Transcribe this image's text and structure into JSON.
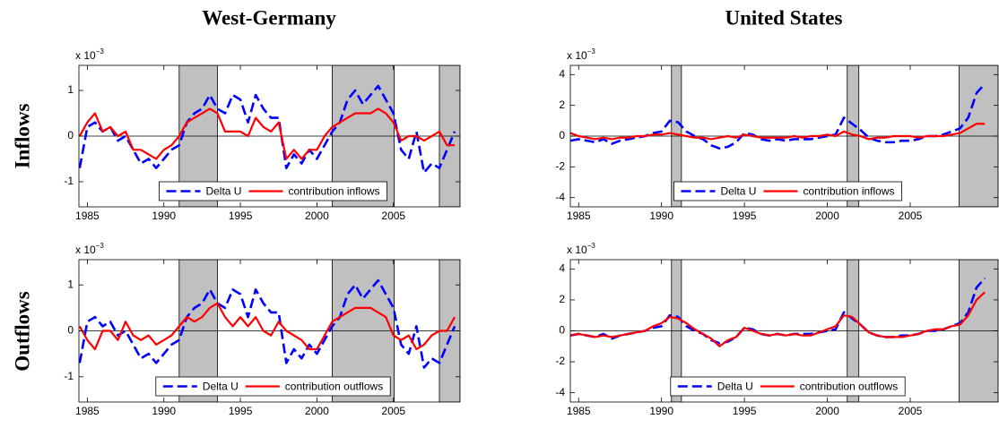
{
  "column_titles": [
    "West-Germany",
    "United States"
  ],
  "row_titles": [
    "Inflows",
    "Outflows"
  ],
  "chart_data": [
    {
      "type": "line",
      "y_multiplier": "x 10",
      "y_exponent": "−3",
      "xlim": [
        1984.45,
        2009.35
      ],
      "xticks": [
        1985,
        1990,
        1995,
        2000,
        2005
      ],
      "ylim": [
        -1.55,
        1.55
      ],
      "yticks": [
        -1,
        0,
        1
      ],
      "shaded": [
        [
          1991,
          1993.5
        ],
        [
          2001,
          2005.05
        ],
        [
          2008,
          2009.35
        ]
      ],
      "shade_color": "#c0c0c0",
      "legend": "lower center",
      "x": [
        1984.5,
        1985,
        1985.5,
        1986,
        1986.5,
        1987,
        1987.5,
        1988,
        1988.5,
        1989,
        1989.5,
        1990,
        1990.5,
        1991,
        1991.5,
        1992,
        1992.5,
        1993,
        1993.5,
        1994,
        1994.5,
        1995,
        1995.5,
        1996,
        1996.5,
        1997,
        1997.5,
        1998,
        1998.5,
        1999,
        1999.5,
        2000,
        2000.5,
        2001,
        2001.5,
        2002,
        2002.5,
        2003,
        2003.5,
        2004,
        2004.5,
        2005,
        2005.5,
        2006,
        2006.5,
        2007,
        2007.5,
        2008,
        2008.5,
        2009
      ],
      "series": [
        {
          "name": "Delta U",
          "color": "#0000ff",
          "style": "dashed",
          "values": [
            -0.7,
            0.2,
            0.3,
            0.1,
            0.2,
            -0.1,
            0.0,
            -0.3,
            -0.6,
            -0.5,
            -0.7,
            -0.5,
            -0.3,
            -0.2,
            0.3,
            0.5,
            0.6,
            0.9,
            0.6,
            0.5,
            0.9,
            0.8,
            0.3,
            0.9,
            0.6,
            0.4,
            0.4,
            -0.7,
            -0.4,
            -0.6,
            -0.3,
            -0.5,
            -0.2,
            0.1,
            0.3,
            0.8,
            1.0,
            0.7,
            0.9,
            1.1,
            0.8,
            0.5,
            -0.3,
            -0.5,
            0.1,
            -0.8,
            -0.6,
            -0.7,
            -0.3,
            0.1
          ]
        },
        {
          "name": "contribution inflows",
          "color": "#ff0000",
          "style": "solid",
          "values": [
            0.0,
            0.3,
            0.5,
            0.1,
            0.2,
            0.0,
            0.1,
            -0.3,
            -0.3,
            -0.4,
            -0.5,
            -0.3,
            -0.2,
            0.0,
            0.3,
            0.4,
            0.5,
            0.6,
            0.5,
            0.1,
            0.1,
            0.1,
            0.0,
            0.4,
            0.2,
            0.1,
            0.3,
            -0.5,
            -0.3,
            -0.5,
            -0.3,
            -0.3,
            0.0,
            0.2,
            0.3,
            0.4,
            0.5,
            0.5,
            0.5,
            0.6,
            0.5,
            0.3,
            -0.1,
            0.0,
            0.0,
            -0.1,
            0.0,
            0.1,
            -0.2,
            -0.2
          ]
        }
      ]
    },
    {
      "type": "line",
      "y_multiplier": "x 10",
      "y_exponent": "−3",
      "xlim": [
        1984.5,
        2010.3
      ],
      "xticks": [
        1985,
        1990,
        1995,
        2000,
        2005
      ],
      "ylim": [
        -4.6,
        4.6
      ],
      "yticks": [
        -4,
        -2,
        0,
        2,
        4
      ],
      "shaded": [
        [
          1990.6,
          1991.2
        ],
        [
          2001.2,
          2001.9
        ],
        [
          2007.95,
          2010.3
        ]
      ],
      "shade_color": "#c0c0c0",
      "legend": "lower center",
      "x": [
        1984.5,
        1985,
        1985.5,
        1986,
        1986.5,
        1987,
        1987.5,
        1988,
        1988.5,
        1989,
        1989.5,
        1990,
        1990.5,
        1991,
        1991.5,
        1992,
        1992.5,
        1993,
        1993.5,
        1994,
        1994.5,
        1995,
        1995.5,
        1996,
        1996.5,
        1997,
        1997.5,
        1998,
        1998.5,
        1999,
        1999.5,
        2000,
        2000.5,
        2001,
        2001.5,
        2002,
        2002.5,
        2003,
        2003.5,
        2004,
        2004.5,
        2005,
        2005.5,
        2006,
        2006.5,
        2007,
        2007.5,
        2008,
        2008.5,
        2009,
        2009.5
      ],
      "series": [
        {
          "name": "Delta U",
          "color": "#0000ff",
          "style": "dashed",
          "values": [
            -0.3,
            -0.2,
            -0.3,
            -0.4,
            -0.2,
            -0.5,
            -0.3,
            -0.2,
            -0.1,
            0.0,
            0.2,
            0.3,
            1.0,
            0.9,
            0.3,
            0.0,
            -0.2,
            -0.6,
            -0.8,
            -0.7,
            -0.4,
            0.2,
            0.1,
            -0.2,
            -0.3,
            -0.2,
            -0.3,
            -0.2,
            -0.2,
            -0.2,
            -0.1,
            0.0,
            0.1,
            1.2,
            0.8,
            0.4,
            -0.1,
            -0.3,
            -0.4,
            -0.4,
            -0.3,
            -0.3,
            -0.2,
            0.0,
            0.0,
            0.1,
            0.3,
            0.5,
            1.2,
            2.8,
            3.4
          ]
        },
        {
          "name": "contribution inflows",
          "color": "#ff0000",
          "style": "solid",
          "values": [
            0.2,
            0.0,
            -0.1,
            -0.2,
            -0.1,
            -0.2,
            -0.1,
            -0.1,
            0.0,
            0.0,
            0.1,
            0.1,
            0.2,
            0.1,
            0.0,
            -0.1,
            -0.1,
            -0.2,
            -0.1,
            0.0,
            -0.1,
            0.1,
            0.0,
            -0.1,
            -0.1,
            -0.1,
            -0.1,
            0.0,
            -0.1,
            0.0,
            0.0,
            0.1,
            0.0,
            0.3,
            0.1,
            0.0,
            -0.2,
            -0.1,
            -0.1,
            0.0,
            0.0,
            0.0,
            -0.1,
            0.0,
            0.0,
            0.0,
            0.1,
            0.2,
            0.5,
            0.8,
            0.8
          ]
        }
      ]
    },
    {
      "type": "line",
      "y_multiplier": "x 10",
      "y_exponent": "−3",
      "xlim": [
        1984.45,
        2009.35
      ],
      "xticks": [
        1985,
        1990,
        1995,
        2000,
        2005
      ],
      "ylim": [
        -1.55,
        1.55
      ],
      "yticks": [
        -1,
        0,
        1
      ],
      "shaded": [
        [
          1991,
          1993.5
        ],
        [
          2001,
          2005.05
        ],
        [
          2008,
          2009.35
        ]
      ],
      "shade_color": "#c0c0c0",
      "legend": "lower center",
      "x": [
        1984.5,
        1985,
        1985.5,
        1986,
        1986.5,
        1987,
        1987.5,
        1988,
        1988.5,
        1989,
        1989.5,
        1990,
        1990.5,
        1991,
        1991.5,
        1992,
        1992.5,
        1993,
        1993.5,
        1994,
        1994.5,
        1995,
        1995.5,
        1996,
        1996.5,
        1997,
        1997.5,
        1998,
        1998.5,
        1999,
        1999.5,
        2000,
        2000.5,
        2001,
        2001.5,
        2002,
        2002.5,
        2003,
        2003.5,
        2004,
        2004.5,
        2005,
        2005.5,
        2006,
        2006.5,
        2007,
        2007.5,
        2008,
        2008.5,
        2009
      ],
      "series": [
        {
          "name": "Delta U",
          "color": "#0000ff",
          "style": "dashed",
          "values": [
            -0.7,
            0.2,
            0.3,
            0.1,
            0.2,
            -0.1,
            0.0,
            -0.3,
            -0.6,
            -0.5,
            -0.7,
            -0.5,
            -0.3,
            -0.2,
            0.3,
            0.5,
            0.6,
            0.9,
            0.6,
            0.5,
            0.9,
            0.8,
            0.3,
            0.9,
            0.6,
            0.4,
            0.4,
            -0.7,
            -0.4,
            -0.6,
            -0.3,
            -0.5,
            -0.2,
            0.1,
            0.3,
            0.8,
            1.0,
            0.7,
            0.9,
            1.1,
            0.8,
            0.5,
            -0.3,
            -0.5,
            0.1,
            -0.8,
            -0.6,
            -0.7,
            -0.3,
            0.1
          ]
        },
        {
          "name": "contribution outflows",
          "color": "#ff0000",
          "style": "solid",
          "values": [
            0.1,
            -0.2,
            -0.4,
            0.0,
            0.0,
            -0.2,
            0.2,
            -0.1,
            -0.2,
            -0.1,
            -0.3,
            -0.2,
            -0.1,
            0.1,
            0.3,
            0.2,
            0.3,
            0.5,
            0.6,
            0.3,
            0.1,
            0.3,
            0.1,
            0.3,
            0.0,
            -0.1,
            0.2,
            0.0,
            -0.1,
            -0.2,
            -0.4,
            -0.4,
            -0.1,
            0.2,
            0.3,
            0.4,
            0.5,
            0.5,
            0.5,
            0.4,
            0.3,
            -0.1,
            -0.2,
            -0.1,
            -0.4,
            -0.3,
            -0.1,
            0.0,
            0.0,
            0.3
          ]
        }
      ]
    },
    {
      "type": "line",
      "y_multiplier": "x 10",
      "y_exponent": "−3",
      "xlim": [
        1984.5,
        2010.3
      ],
      "xticks": [
        1985,
        1990,
        1995,
        2000,
        2005
      ],
      "ylim": [
        -4.6,
        4.6
      ],
      "yticks": [
        -4,
        -2,
        0,
        2,
        4
      ],
      "shaded": [
        [
          1990.6,
          1991.2
        ],
        [
          2001.2,
          2001.9
        ],
        [
          2007.95,
          2010.3
        ]
      ],
      "shade_color": "#c0c0c0",
      "legend": "lower center",
      "x": [
        1984.5,
        1985,
        1985.5,
        1986,
        1986.5,
        1987,
        1987.5,
        1988,
        1988.5,
        1989,
        1989.5,
        1990,
        1990.5,
        1991,
        1991.5,
        1992,
        1992.5,
        1993,
        1993.5,
        1994,
        1994.5,
        1995,
        1995.5,
        1996,
        1996.5,
        1997,
        1997.5,
        1998,
        1998.5,
        1999,
        1999.5,
        2000,
        2000.5,
        2001,
        2001.5,
        2002,
        2002.5,
        2003,
        2003.5,
        2004,
        2004.5,
        2005,
        2005.5,
        2006,
        2006.5,
        2007,
        2007.5,
        2008,
        2008.5,
        2009,
        2009.5
      ],
      "series": [
        {
          "name": "Delta U",
          "color": "#0000ff",
          "style": "dashed",
          "values": [
            -0.3,
            -0.2,
            -0.3,
            -0.4,
            -0.2,
            -0.5,
            -0.3,
            -0.2,
            -0.1,
            0.0,
            0.2,
            0.3,
            1.0,
            0.9,
            0.3,
            0.0,
            -0.2,
            -0.6,
            -0.8,
            -0.7,
            -0.4,
            0.2,
            0.1,
            -0.2,
            -0.3,
            -0.2,
            -0.3,
            -0.2,
            -0.2,
            -0.2,
            -0.1,
            0.0,
            0.1,
            1.2,
            0.8,
            0.4,
            -0.1,
            -0.3,
            -0.4,
            -0.4,
            -0.3,
            -0.3,
            -0.2,
            0.0,
            0.0,
            0.1,
            0.3,
            0.5,
            1.2,
            2.8,
            3.4
          ]
        },
        {
          "name": "contribution outflows",
          "color": "#ff0000",
          "style": "solid",
          "values": [
            -0.3,
            -0.2,
            -0.3,
            -0.4,
            -0.3,
            -0.4,
            -0.3,
            -0.2,
            -0.1,
            0.0,
            0.3,
            0.5,
            0.9,
            0.8,
            0.5,
            0.1,
            -0.2,
            -0.5,
            -1.0,
            -0.6,
            -0.4,
            0.2,
            0.0,
            -0.2,
            -0.3,
            -0.2,
            -0.3,
            -0.2,
            -0.3,
            -0.3,
            -0.1,
            0.1,
            0.3,
            1.0,
            0.9,
            0.4,
            -0.1,
            -0.3,
            -0.4,
            -0.4,
            -0.4,
            -0.3,
            -0.2,
            0.0,
            0.1,
            0.1,
            0.3,
            0.4,
            1.0,
            2.0,
            2.5
          ]
        }
      ]
    }
  ]
}
